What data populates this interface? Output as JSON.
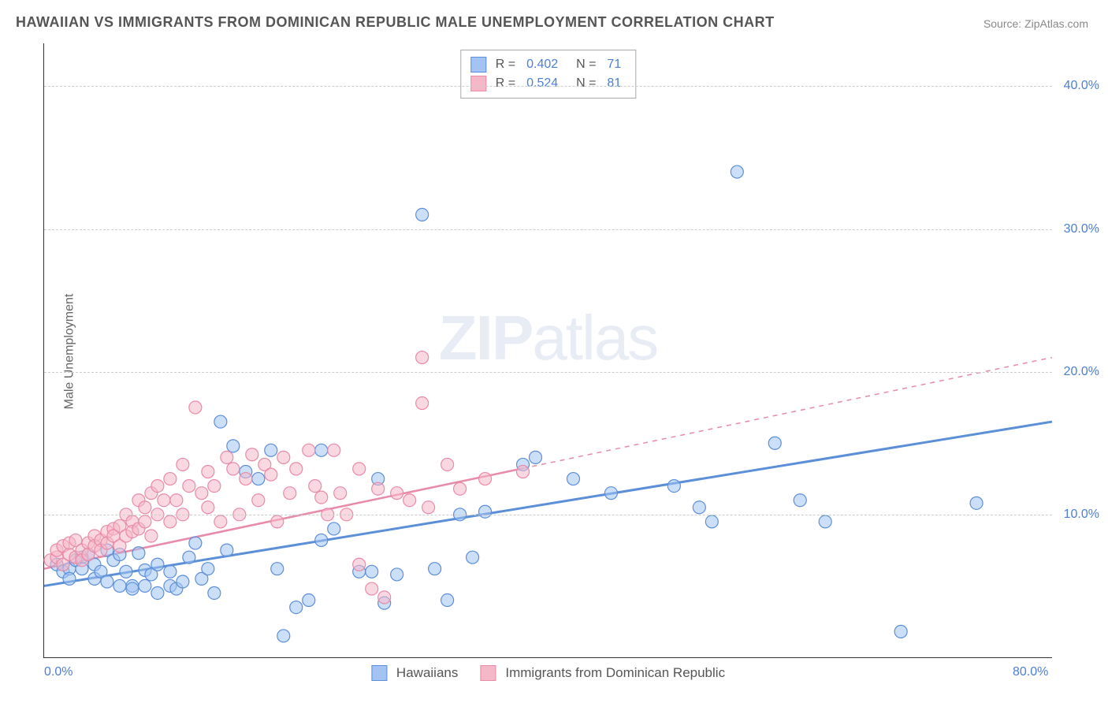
{
  "title": "HAWAIIAN VS IMMIGRANTS FROM DOMINICAN REPUBLIC MALE UNEMPLOYMENT CORRELATION CHART",
  "source": "Source: ZipAtlas.com",
  "y_axis_label": "Male Unemployment",
  "watermark": {
    "zip": "ZIP",
    "atlas": "atlas"
  },
  "chart": {
    "type": "scatter",
    "xlim": [
      0,
      80
    ],
    "ylim": [
      0,
      43
    ],
    "x_ticks": [
      {
        "v": 0,
        "label": "0.0%"
      },
      {
        "v": 80,
        "label": "80.0%"
      }
    ],
    "y_ticks": [
      {
        "v": 10,
        "label": "10.0%"
      },
      {
        "v": 20,
        "label": "20.0%"
      },
      {
        "v": 30,
        "label": "30.0%"
      },
      {
        "v": 40,
        "label": "40.0%"
      }
    ],
    "background_color": "#ffffff",
    "grid_color": "#cccccc",
    "axis_color": "#333333",
    "tick_label_color": "#4a7fd8",
    "marker_radius": 8,
    "marker_opacity": 0.55,
    "series": [
      {
        "name": "Hawaiians",
        "color_fill": "#a3c4f3",
        "color_stroke": "#5b8fd8",
        "R": "0.402",
        "N": "71",
        "trend": {
          "x1": 0,
          "y1": 5.0,
          "x2": 80,
          "y2": 16.5,
          "solid_until_x": 80,
          "stroke_width": 3
        },
        "points": [
          [
            1,
            6.5
          ],
          [
            1.5,
            6
          ],
          [
            2,
            6.2
          ],
          [
            2,
            5.5
          ],
          [
            2.5,
            6.8
          ],
          [
            3,
            7
          ],
          [
            3,
            6.2
          ],
          [
            3.5,
            7.2
          ],
          [
            4,
            6.5
          ],
          [
            4,
            5.5
          ],
          [
            4.5,
            6
          ],
          [
            5,
            5.3
          ],
          [
            5,
            7.5
          ],
          [
            5.5,
            6.8
          ],
          [
            6,
            5
          ],
          [
            6,
            7.2
          ],
          [
            6.5,
            6
          ],
          [
            7,
            5
          ],
          [
            7,
            4.8
          ],
          [
            7.5,
            7.3
          ],
          [
            8,
            6.1
          ],
          [
            8,
            5
          ],
          [
            8.5,
            5.8
          ],
          [
            9,
            6.5
          ],
          [
            9,
            4.5
          ],
          [
            10,
            6
          ],
          [
            10,
            5
          ],
          [
            10.5,
            4.8
          ],
          [
            11,
            5.3
          ],
          [
            11.5,
            7
          ],
          [
            12,
            8
          ],
          [
            12.5,
            5.5
          ],
          [
            13,
            6.2
          ],
          [
            13.5,
            4.5
          ],
          [
            14,
            16.5
          ],
          [
            14.5,
            7.5
          ],
          [
            15,
            14.8
          ],
          [
            16,
            13
          ],
          [
            17,
            12.5
          ],
          [
            18,
            14.5
          ],
          [
            18.5,
            6.2
          ],
          [
            19,
            1.5
          ],
          [
            20,
            3.5
          ],
          [
            21,
            4
          ],
          [
            22,
            8.2
          ],
          [
            22,
            14.5
          ],
          [
            23,
            9
          ],
          [
            25,
            6
          ],
          [
            26,
            6
          ],
          [
            26.5,
            12.5
          ],
          [
            27,
            3.8
          ],
          [
            28,
            5.8
          ],
          [
            30,
            31
          ],
          [
            31,
            6.2
          ],
          [
            32,
            4
          ],
          [
            33,
            10
          ],
          [
            34,
            7
          ],
          [
            35,
            10.2
          ],
          [
            38,
            13.5
          ],
          [
            39,
            14
          ],
          [
            42,
            12.5
          ],
          [
            45,
            11.5
          ],
          [
            50,
            12
          ],
          [
            52,
            10.5
          ],
          [
            53,
            9.5
          ],
          [
            55,
            34
          ],
          [
            58,
            15
          ],
          [
            60,
            11
          ],
          [
            62,
            9.5
          ],
          [
            68,
            1.8
          ],
          [
            74,
            10.8
          ]
        ]
      },
      {
        "name": "Immigrants from Dominican Republic",
        "color_fill": "#f5b8c8",
        "color_stroke": "#e88aa8",
        "R": "0.524",
        "N": "81",
        "trend": {
          "x1": 0,
          "y1": 6.2,
          "x2": 80,
          "y2": 21.0,
          "solid_until_x": 38,
          "stroke_width": 2.5
        },
        "points": [
          [
            0.5,
            6.8
          ],
          [
            1,
            7
          ],
          [
            1,
            7.5
          ],
          [
            1.5,
            6.5
          ],
          [
            1.5,
            7.8
          ],
          [
            2,
            7.2
          ],
          [
            2,
            8
          ],
          [
            2.5,
            7
          ],
          [
            2.5,
            8.2
          ],
          [
            3,
            7.5
          ],
          [
            3,
            6.8
          ],
          [
            3.5,
            8
          ],
          [
            3.5,
            7.2
          ],
          [
            4,
            8.5
          ],
          [
            4,
            7.8
          ],
          [
            4.5,
            8.2
          ],
          [
            4.5,
            7.5
          ],
          [
            5,
            8.8
          ],
          [
            5,
            8
          ],
          [
            5.5,
            9
          ],
          [
            5.5,
            8.5
          ],
          [
            6,
            7.8
          ],
          [
            6,
            9.2
          ],
          [
            6.5,
            8.5
          ],
          [
            6.5,
            10
          ],
          [
            7,
            9.5
          ],
          [
            7,
            8.8
          ],
          [
            7.5,
            11
          ],
          [
            7.5,
            9
          ],
          [
            8,
            10.5
          ],
          [
            8,
            9.5
          ],
          [
            8.5,
            11.5
          ],
          [
            8.5,
            8.5
          ],
          [
            9,
            10
          ],
          [
            9,
            12
          ],
          [
            9.5,
            11
          ],
          [
            10,
            9.5
          ],
          [
            10,
            12.5
          ],
          [
            10.5,
            11
          ],
          [
            11,
            10
          ],
          [
            11,
            13.5
          ],
          [
            11.5,
            12
          ],
          [
            12,
            17.5
          ],
          [
            12.5,
            11.5
          ],
          [
            13,
            10.5
          ],
          [
            13,
            13
          ],
          [
            13.5,
            12
          ],
          [
            14,
            9.5
          ],
          [
            14.5,
            14
          ],
          [
            15,
            13.2
          ],
          [
            15.5,
            10
          ],
          [
            16,
            12.5
          ],
          [
            16.5,
            14.2
          ],
          [
            17,
            11
          ],
          [
            17.5,
            13.5
          ],
          [
            18,
            12.8
          ],
          [
            18.5,
            9.5
          ],
          [
            19,
            14
          ],
          [
            19.5,
            11.5
          ],
          [
            20,
            13.2
          ],
          [
            21,
            14.5
          ],
          [
            21.5,
            12
          ],
          [
            22,
            11.2
          ],
          [
            22.5,
            10
          ],
          [
            23,
            14.5
          ],
          [
            23.5,
            11.5
          ],
          [
            24,
            10
          ],
          [
            25,
            13.2
          ],
          [
            25,
            6.5
          ],
          [
            26,
            4.8
          ],
          [
            26.5,
            11.8
          ],
          [
            27,
            4.2
          ],
          [
            28,
            11.5
          ],
          [
            29,
            11
          ],
          [
            30,
            21
          ],
          [
            30,
            17.8
          ],
          [
            30.5,
            10.5
          ],
          [
            32,
            13.5
          ],
          [
            33,
            11.8
          ],
          [
            35,
            12.5
          ],
          [
            38,
            13
          ]
        ]
      }
    ]
  },
  "legend_top": [
    {
      "series_idx": 0
    },
    {
      "series_idx": 1
    }
  ],
  "legend_bottom": [
    {
      "series_idx": 0
    },
    {
      "series_idx": 1
    }
  ]
}
